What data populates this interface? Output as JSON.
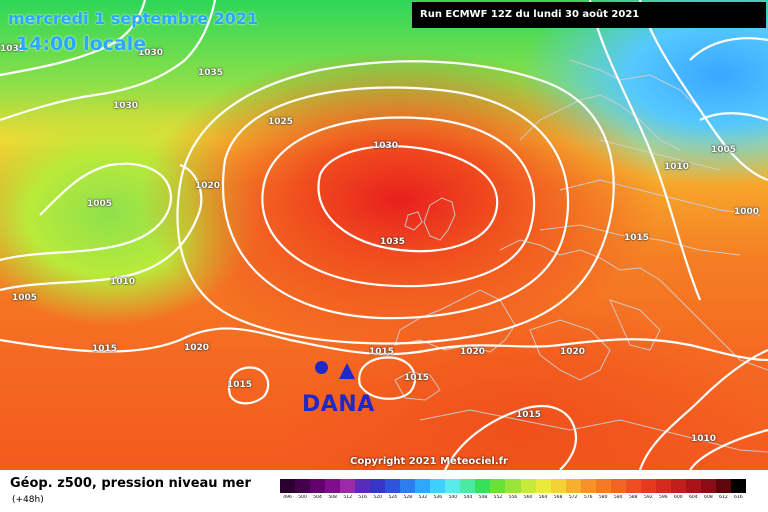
{
  "header": {
    "date": "mercredi 1 septembre 2021",
    "time": "14:00 locale",
    "run": "Run ECMWF 12Z du lundi 30 août 2021"
  },
  "map": {
    "isobar_labels": [
      "1035",
      "1030",
      "1035",
      "1030",
      "1025",
      "1030",
      "1020",
      "1005",
      "1035",
      "1010",
      "1005",
      "1015",
      "1020",
      "1015",
      "1015",
      "1020",
      "1020",
      "1015",
      "1010",
      "1005",
      "1000",
      "1015",
      "1010",
      "1015"
    ],
    "annotation": "DANA",
    "copyright": "Copyright 2021 Meteociel.fr"
  },
  "footer": {
    "parameter": "Géop. z500, pression niveau mer",
    "lead_time": "(+48h)"
  },
  "scale": {
    "values": [
      "496",
      "500",
      "504",
      "508",
      "512",
      "516",
      "520",
      "524",
      "528",
      "532",
      "536",
      "540",
      "544",
      "548",
      "552",
      "556",
      "560",
      "564",
      "568",
      "572",
      "576",
      "580",
      "584",
      "588",
      "592",
      "596",
      "600",
      "604",
      "608",
      "612",
      "616"
    ],
    "colors": [
      "#2a002e",
      "#45004d",
      "#63006e",
      "#7d0f8a",
      "#9a2aa8",
      "#5a2ab8",
      "#3636c8",
      "#2e54dc",
      "#2e7ef0",
      "#2ea8ff",
      "#3ed0ff",
      "#5aeaea",
      "#4ae8a0",
      "#38e05a",
      "#6ae03a",
      "#9ae43a",
      "#c6ea3a",
      "#eaea3a",
      "#f2d234",
      "#f6b02e",
      "#f6922a",
      "#f47a26",
      "#f26424",
      "#ee4e22",
      "#e63a20",
      "#d62a1e",
      "#c21e1c",
      "#a8141a",
      "#8a0c14",
      "#5e060c",
      "#000000"
    ]
  },
  "colors": {
    "annotation": "#1f28c8",
    "title_accent": "#2aa8ff"
  }
}
